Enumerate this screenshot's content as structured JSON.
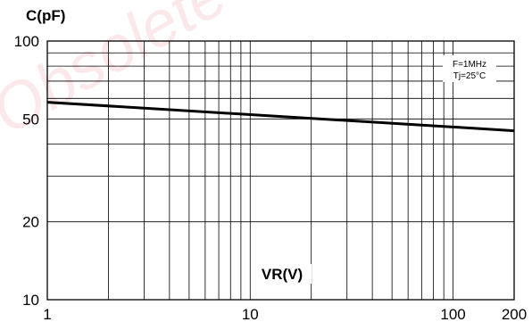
{
  "watermark": "Obsolete",
  "chart_data": {
    "type": "line",
    "title": "",
    "ylabel": "C(pF)",
    "xlabel": "VR(V)",
    "xscale": "log",
    "yscale": "log",
    "xlim": [
      1,
      200
    ],
    "ylim": [
      10,
      100
    ],
    "grid": true,
    "x_ticks": [
      {
        "value": 1,
        "label": "1"
      },
      {
        "value": 10,
        "label": "10"
      },
      {
        "value": 100,
        "label": "100"
      },
      {
        "value": 200,
        "label": "200"
      }
    ],
    "y_ticks": [
      {
        "value": 10,
        "label": "10"
      },
      {
        "value": 20,
        "label": "20"
      },
      {
        "value": 50,
        "label": "50"
      },
      {
        "value": 100,
        "label": "100"
      }
    ],
    "x_gridlines": [
      1,
      2,
      3,
      4,
      5,
      6,
      7,
      8,
      9,
      10,
      20,
      30,
      40,
      50,
      60,
      70,
      80,
      90,
      100,
      200
    ],
    "y_gridlines": [
      10,
      20,
      30,
      40,
      50,
      60,
      70,
      80,
      90,
      100
    ],
    "annotations": [
      "F=1MHz",
      "Tj=25°C"
    ],
    "series": [
      {
        "x": [
          1,
          200
        ],
        "y": [
          58,
          45
        ]
      }
    ]
  }
}
